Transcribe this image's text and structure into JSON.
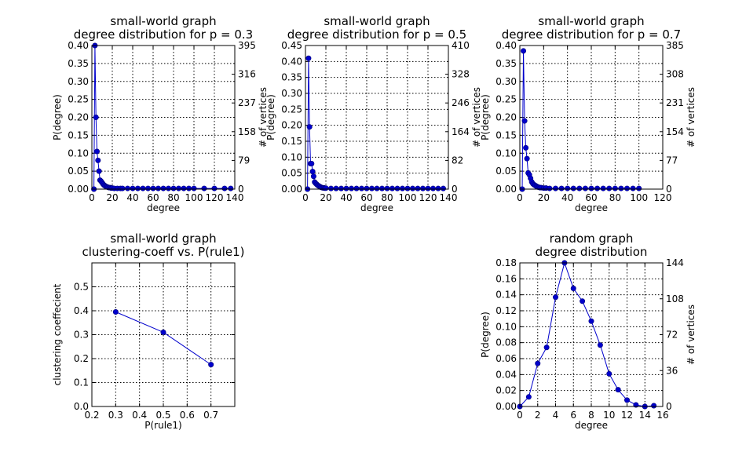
{
  "chart_data": [
    {
      "id": "p03",
      "type": "line",
      "title": [
        "small-world graph",
        "degree distribution for p = 0.3"
      ],
      "xlabel": "degree",
      "ylabel": "P(degree)",
      "y2label": "# of vertices",
      "xlim": [
        0,
        140
      ],
      "ylim": [
        0,
        0.4
      ],
      "xticks": [
        "0",
        "20",
        "40",
        "60",
        "80",
        "100",
        "120",
        "140"
      ],
      "yticks": [
        "0.00",
        "0.05",
        "0.10",
        "0.15",
        "0.20",
        "0.25",
        "0.30",
        "0.35",
        "0.40"
      ],
      "y2ticks": [
        "0",
        "79",
        "158",
        "237",
        "316",
        "395"
      ],
      "grid": true,
      "color": "#0000cc",
      "x": [
        2,
        3,
        4,
        5,
        6,
        7,
        8,
        9,
        10,
        11,
        12,
        13,
        14,
        15,
        16,
        17,
        18,
        19,
        20,
        22,
        25,
        28,
        30,
        35,
        40,
        45,
        50,
        55,
        60,
        65,
        70,
        75,
        80,
        85,
        90,
        95,
        100,
        110,
        120,
        130,
        136
      ],
      "y": [
        0.0,
        0.4,
        0.2,
        0.105,
        0.08,
        0.05,
        0.025,
        0.022,
        0.018,
        0.014,
        0.011,
        0.009,
        0.007,
        0.006,
        0.005,
        0.004,
        0.004,
        0.003,
        0.003,
        0.002,
        0.002,
        0.002,
        0.002,
        0.002,
        0.002,
        0.002,
        0.002,
        0.002,
        0.002,
        0.002,
        0.002,
        0.002,
        0.002,
        0.002,
        0.002,
        0.002,
        0.002,
        0.002,
        0.002,
        0.002,
        0.002
      ]
    },
    {
      "id": "p05",
      "type": "line",
      "title": [
        "small-world graph",
        "degree distribution for p = 0.5"
      ],
      "xlabel": "degree",
      "ylabel": "P(degree)",
      "y2label": "# of vertices",
      "xlim": [
        0,
        140
      ],
      "ylim": [
        0,
        0.45
      ],
      "xticks": [
        "0",
        "20",
        "40",
        "60",
        "80",
        "100",
        "120",
        "140"
      ],
      "yticks": [
        "0.00",
        "0.05",
        "0.10",
        "0.15",
        "0.20",
        "0.25",
        "0.30",
        "0.35",
        "0.40",
        "0.45"
      ],
      "y2ticks": [
        "0",
        "82",
        "164",
        "246",
        "328",
        "410"
      ],
      "grid": true,
      "color": "#0000cc",
      "x": [
        2,
        3,
        4,
        5,
        6,
        7,
        8,
        9,
        10,
        11,
        12,
        13,
        14,
        15,
        16,
        17,
        18,
        19,
        20,
        25,
        30,
        35,
        40,
        45,
        50,
        55,
        60,
        65,
        70,
        75,
        80,
        85,
        90,
        95,
        100,
        105,
        110,
        115,
        120,
        125,
        130,
        135
      ],
      "y": [
        0.0,
        0.41,
        0.195,
        0.08,
        0.08,
        0.055,
        0.04,
        0.022,
        0.018,
        0.015,
        0.012,
        0.01,
        0.008,
        0.006,
        0.005,
        0.004,
        0.004,
        0.003,
        0.003,
        0.002,
        0.002,
        0.002,
        0.002,
        0.002,
        0.002,
        0.002,
        0.002,
        0.002,
        0.002,
        0.002,
        0.002,
        0.002,
        0.002,
        0.002,
        0.002,
        0.002,
        0.002,
        0.002,
        0.002,
        0.002,
        0.002,
        0.002
      ]
    },
    {
      "id": "p07",
      "type": "line",
      "title": [
        "small-world graph",
        "degree distribution for p = 0.7"
      ],
      "xlabel": "degree",
      "ylabel": "P(degree)",
      "y2label": "# of vertices",
      "xlim": [
        0,
        120
      ],
      "ylim": [
        0,
        0.4
      ],
      "xticks": [
        "0",
        "20",
        "40",
        "60",
        "80",
        "100",
        "120"
      ],
      "yticks": [
        "0.00",
        "0.05",
        "0.10",
        "0.15",
        "0.20",
        "0.25",
        "0.30",
        "0.35",
        "0.40"
      ],
      "y2ticks": [
        "0",
        "77",
        "154",
        "231",
        "308",
        "385"
      ],
      "grid": true,
      "color": "#0000cc",
      "x": [
        2,
        3,
        4,
        5,
        6,
        7,
        8,
        9,
        10,
        11,
        12,
        13,
        14,
        15,
        16,
        17,
        18,
        20,
        22,
        25,
        30,
        35,
        40,
        45,
        50,
        55,
        60,
        65,
        70,
        75,
        80,
        85,
        90,
        95,
        100
      ],
      "y": [
        0.0,
        0.385,
        0.19,
        0.115,
        0.085,
        0.045,
        0.04,
        0.03,
        0.02,
        0.015,
        0.012,
        0.01,
        0.008,
        0.006,
        0.005,
        0.004,
        0.004,
        0.003,
        0.003,
        0.002,
        0.002,
        0.002,
        0.002,
        0.002,
        0.002,
        0.002,
        0.002,
        0.002,
        0.002,
        0.002,
        0.002,
        0.002,
        0.002,
        0.002,
        0.002
      ]
    },
    {
      "id": "clust",
      "type": "line",
      "title": [
        "small-world graph",
        "clustering-coeff vs. P(rule1)"
      ],
      "xlabel": "P(rule1)",
      "ylabel": "clustering coeffecient",
      "y2label": "",
      "xlim": [
        0.2,
        0.8
      ],
      "ylim": [
        0,
        0.6
      ],
      "xticks": [
        "0.2",
        "0.3",
        "0.4",
        "0.5",
        "0.6",
        "0.7"
      ],
      "xtickvals": [
        0.2,
        0.3,
        0.4,
        0.5,
        0.6,
        0.7
      ],
      "yticks": [
        "0.0",
        "0.1",
        "0.2",
        "0.3",
        "0.4",
        "0.5"
      ],
      "ytickvals": [
        0,
        0.1,
        0.2,
        0.3,
        0.4,
        0.5
      ],
      "y2ticks": [],
      "grid": true,
      "color": "#0000cc",
      "x": [
        0.3,
        0.5,
        0.7
      ],
      "y": [
        0.395,
        0.31,
        0.175
      ]
    },
    {
      "id": "random",
      "type": "line",
      "title": [
        "random graph",
        "degree distribution"
      ],
      "xlabel": "degree",
      "ylabel": "P(degree)",
      "y2label": "# of vertices",
      "xlim": [
        0,
        16
      ],
      "ylim": [
        0,
        0.18
      ],
      "xticks": [
        "0",
        "2",
        "4",
        "6",
        "8",
        "10",
        "12",
        "14",
        "16"
      ],
      "yticks": [
        "0.00",
        "0.02",
        "0.04",
        "0.06",
        "0.08",
        "0.10",
        "0.12",
        "0.14",
        "0.16",
        "0.18"
      ],
      "y2ticks": [
        "0",
        "36",
        "72",
        "108",
        "144"
      ],
      "grid": true,
      "color": "#0000cc",
      "x": [
        0,
        1,
        2,
        3,
        4,
        5,
        6,
        7,
        8,
        9,
        10,
        11,
        12,
        13,
        14,
        15
      ],
      "y": [
        0.0,
        0.012,
        0.054,
        0.074,
        0.137,
        0.18,
        0.148,
        0.132,
        0.107,
        0.077,
        0.041,
        0.021,
        0.008,
        0.002,
        0.0,
        0.001
      ]
    }
  ]
}
